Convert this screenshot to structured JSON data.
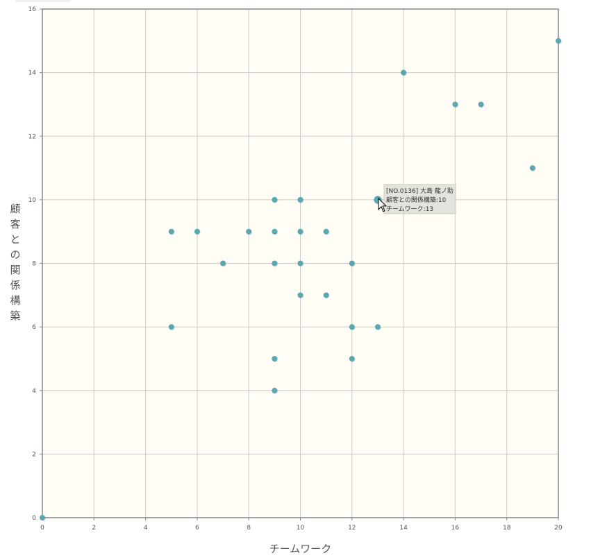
{
  "chart_data": {
    "type": "scatter",
    "xlabel": "チームワーク",
    "ylabel": "顧客との関係構築",
    "xlim": [
      0,
      20
    ],
    "ylim": [
      0,
      16
    ],
    "xticks": [
      0,
      2,
      4,
      6,
      8,
      10,
      12,
      14,
      16,
      18,
      20
    ],
    "yticks": [
      0,
      2,
      4,
      6,
      8,
      10,
      12,
      14,
      16
    ],
    "grid": true,
    "colors": {
      "point": "#5aa7b0",
      "plot_bg": "#fffdf5",
      "grid": "#cccccc",
      "frame": "#888888",
      "tooltip_bg": "#e3e3de"
    },
    "points": [
      {
        "x": 0,
        "y": 0
      },
      {
        "x": 5,
        "y": 9
      },
      {
        "x": 5,
        "y": 6
      },
      {
        "x": 6,
        "y": 9
      },
      {
        "x": 7,
        "y": 8
      },
      {
        "x": 8,
        "y": 9
      },
      {
        "x": 9,
        "y": 10
      },
      {
        "x": 9,
        "y": 9
      },
      {
        "x": 9,
        "y": 8
      },
      {
        "x": 9,
        "y": 5
      },
      {
        "x": 9,
        "y": 4
      },
      {
        "x": 10,
        "y": 10
      },
      {
        "x": 10,
        "y": 9
      },
      {
        "x": 10,
        "y": 8
      },
      {
        "x": 10,
        "y": 7
      },
      {
        "x": 11,
        "y": 9
      },
      {
        "x": 11,
        "y": 7
      },
      {
        "x": 12,
        "y": 8
      },
      {
        "x": 12,
        "y": 6
      },
      {
        "x": 12,
        "y": 5
      },
      {
        "x": 13,
        "y": 10
      },
      {
        "x": 13,
        "y": 6
      },
      {
        "x": 14,
        "y": 14
      },
      {
        "x": 16,
        "y": 13
      },
      {
        "x": 17,
        "y": 13
      },
      {
        "x": 19,
        "y": 11
      },
      {
        "x": 20,
        "y": 15
      }
    ],
    "tooltip": {
      "x": 13,
      "y": 10,
      "lines": [
        "[NO.0136] 大島 龍ノ助",
        "顧客との関係構築:10",
        "チームワーク:13"
      ]
    }
  }
}
